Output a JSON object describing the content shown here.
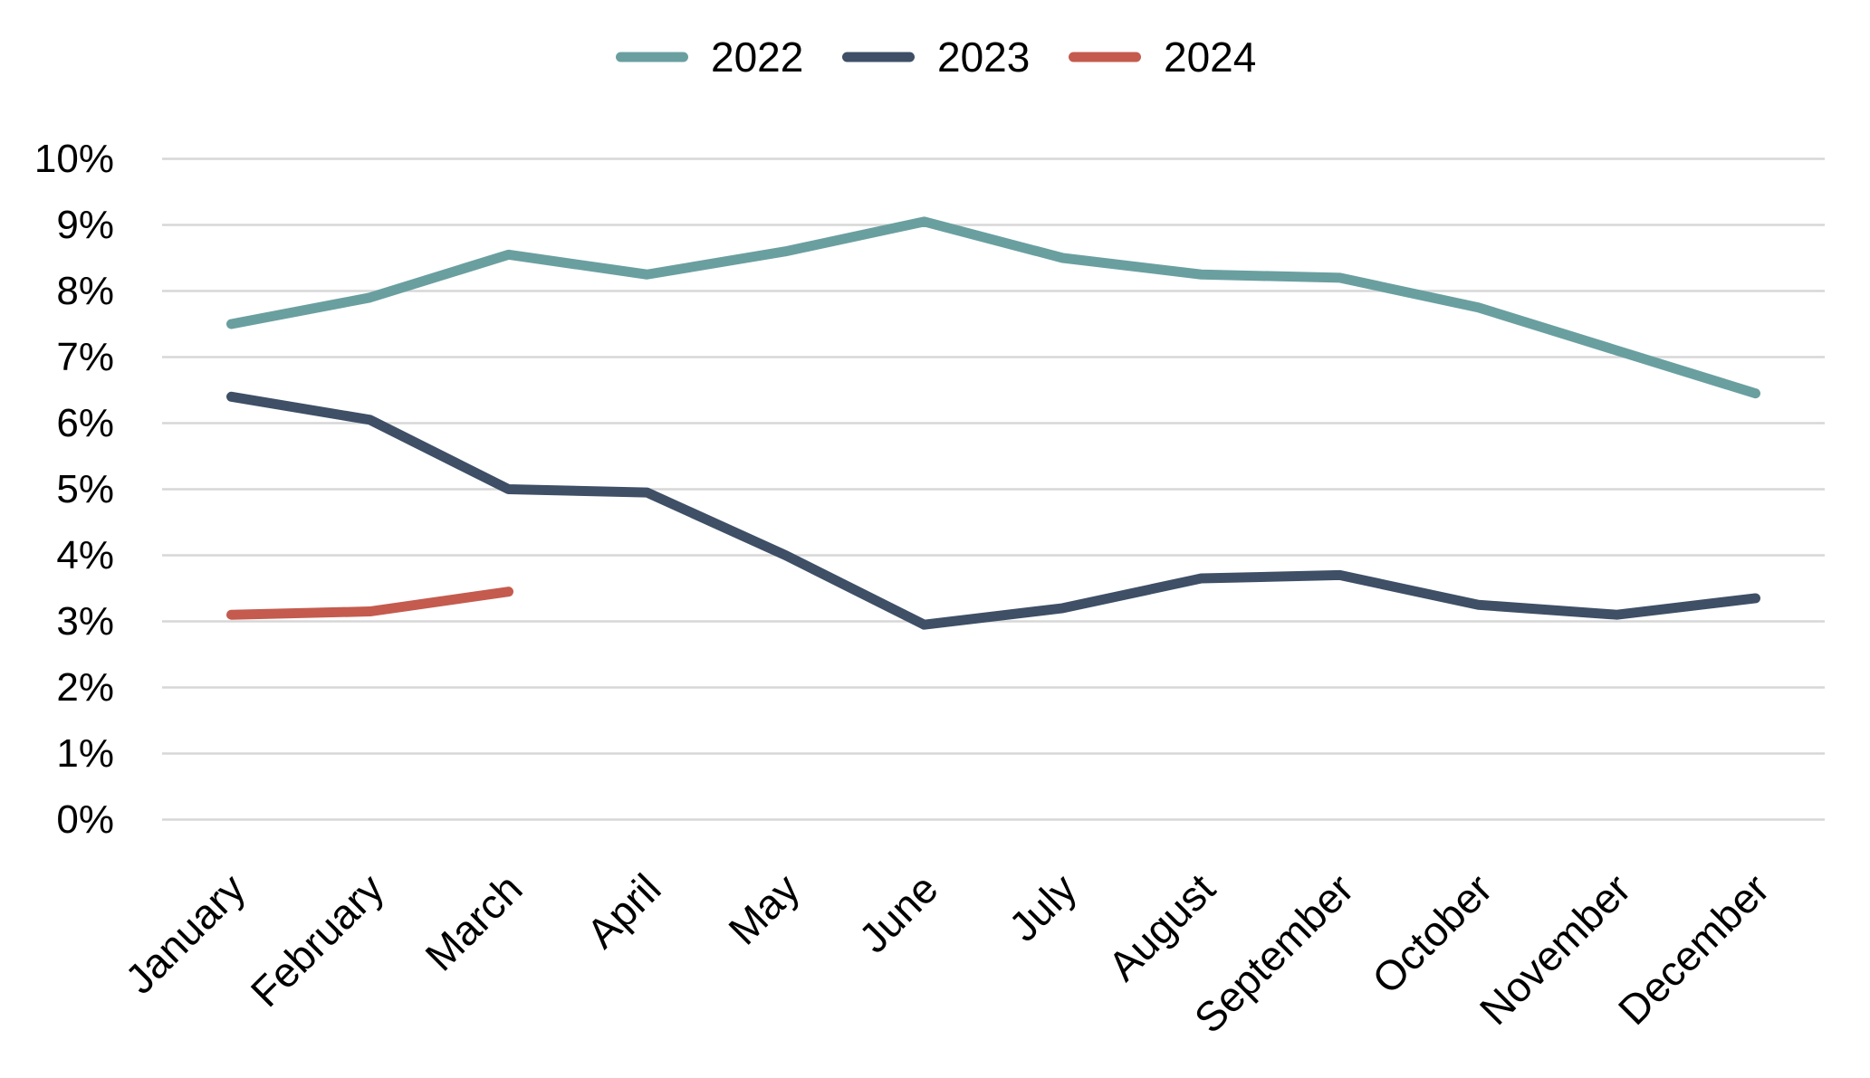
{
  "page": {
    "background": "#FFFFFF",
    "text_color": "#000000"
  },
  "legend": {
    "position": "top-center",
    "items": [
      {
        "label": "2022",
        "color": "#6A9FA0"
      },
      {
        "label": "2023",
        "color": "#3E4F66"
      },
      {
        "label": "2024",
        "color": "#C45B4E"
      }
    ]
  },
  "chart_data": {
    "type": "line",
    "title": "",
    "xlabel": "",
    "ylabel": "",
    "categories": [
      "January",
      "February",
      "March",
      "April",
      "May",
      "June",
      "July",
      "August",
      "September",
      "October",
      "November",
      "December"
    ],
    "series": [
      {
        "name": "2022",
        "color": "#6A9FA0",
        "values": [
          7.5,
          7.9,
          8.55,
          8.25,
          8.6,
          9.05,
          8.5,
          8.25,
          8.2,
          7.75,
          7.1,
          6.45
        ]
      },
      {
        "name": "2023",
        "color": "#3E4F66",
        "values": [
          6.4,
          6.05,
          5.0,
          4.95,
          4.0,
          2.95,
          3.2,
          3.65,
          3.7,
          3.25,
          3.1,
          3.35
        ]
      },
      {
        "name": "2024",
        "color": "#C45B4E",
        "values": [
          3.1,
          3.15,
          3.45
        ]
      }
    ],
    "ylim": [
      0,
      10
    ],
    "ytick_step": 1,
    "ytick_labels": [
      "0%",
      "1%",
      "2%",
      "3%",
      "4%",
      "5%",
      "6%",
      "7%",
      "8%",
      "9%",
      "10%"
    ],
    "xtick_rotation_deg": 45,
    "grid": "horizontal",
    "gridline_color": "#D7D7D7",
    "legend_position": "top",
    "line_width": 11,
    "line_cap": "round",
    "marker": "none"
  }
}
